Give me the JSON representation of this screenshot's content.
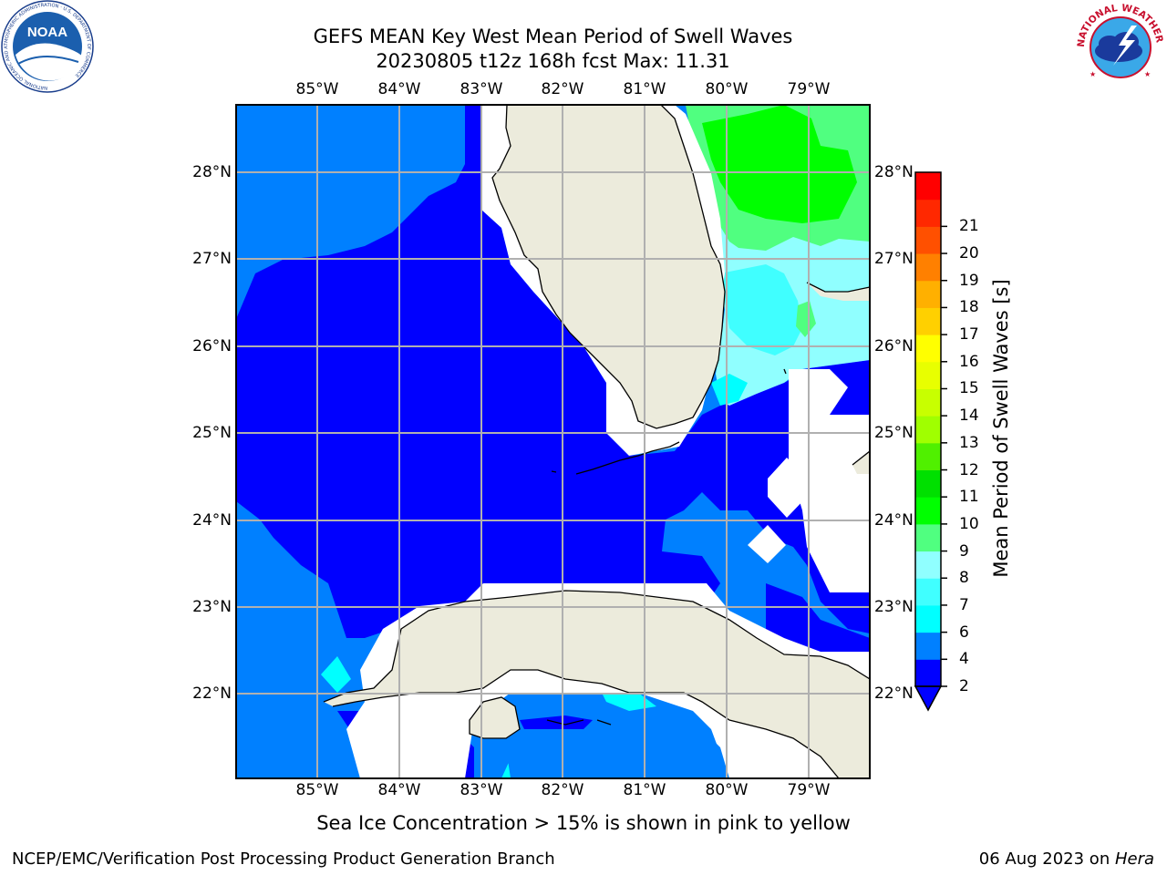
{
  "header": {
    "title_line1": "GEFS MEAN Key West Mean Period of Swell Waves",
    "title_line2": "20230805 t12z 168h fcst   Max: 11.31"
  },
  "map": {
    "lon_ticks": [
      "85°W",
      "84°W",
      "83°W",
      "82°W",
      "81°W",
      "80°W",
      "79°W"
    ],
    "lat_ticks": [
      "28°N",
      "27°N",
      "26°N",
      "25°N",
      "24°N",
      "23°N",
      "22°N"
    ],
    "colors": {
      "land": "#ecebdc",
      "no_data": "#ffffff",
      "grid": "#b0b0b0",
      "band_2_4": "#0000ff",
      "band_4_6": "#0080ff",
      "band_6_7": "#00ffff",
      "band_7_8": "#40ffff",
      "band_8_9": "#90ffff",
      "band_9_10": "#50ff80",
      "band_10_11": "#00ff00"
    }
  },
  "colorbar": {
    "label": "Mean Period of Swell Waves [s]",
    "ticks": [
      "2",
      "4",
      "6",
      "7",
      "8",
      "9",
      "10",
      "11",
      "12",
      "13",
      "14",
      "15",
      "16",
      "17",
      "18",
      "19",
      "20",
      "21"
    ],
    "colors": [
      "#0000ff",
      "#0080ff",
      "#00ffff",
      "#40ffff",
      "#90ffff",
      "#50ff80",
      "#00ff00",
      "#00e000",
      "#50f000",
      "#a0ff00",
      "#c8ff00",
      "#e8ff00",
      "#ffff00",
      "#ffd000",
      "#ffb000",
      "#ff8000",
      "#ff5000",
      "#ff2800",
      "#ff0000"
    ]
  },
  "logos": {
    "noaa_text": "NOAA",
    "noaa_ring_text": "NATIONAL OCEANIC AND ATMOSPHERIC ADMINISTRATION · U.S. DEPARTMENT OF COMMERCE",
    "nws_ring_text": "NATIONAL WEATHER SERVICE"
  },
  "footer": {
    "note": "Sea Ice Concentration > 15% is shown in pink to yellow",
    "credit": "NCEP/EMC/Verification Post Processing Product Generation Branch",
    "date_prefix": "06 Aug 2023 on ",
    "date_machine": "Hera"
  }
}
